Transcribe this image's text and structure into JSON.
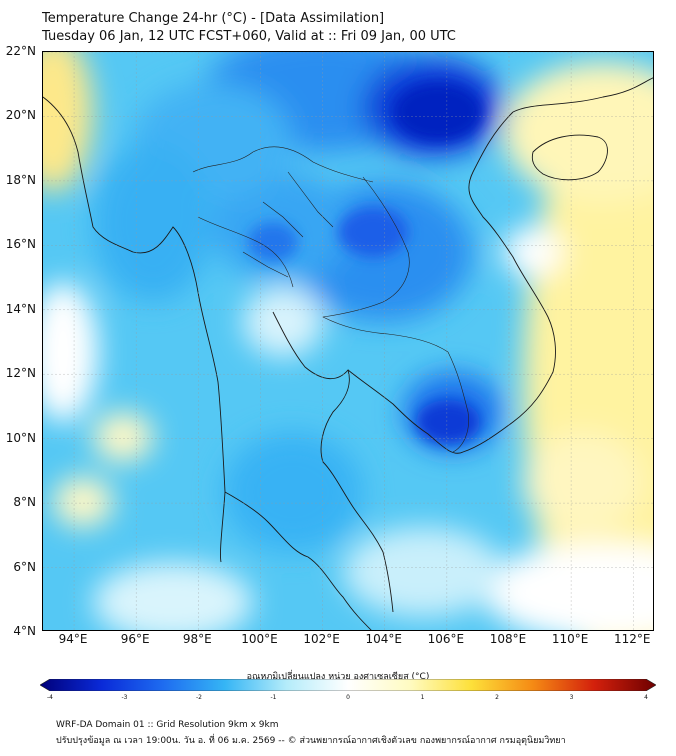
{
  "header": {
    "title": "Temperature Change 24-hr (°C) - [Data Assimilation]",
    "subtitle": "Tuesday 06 Jan, 12 UTC FCST+060, Valid at :: Fri 09 Jan, 00 UTC"
  },
  "map": {
    "lat_range": [
      4,
      22
    ],
    "lon_range": [
      93,
      112.7
    ],
    "lat_ticks": [
      "22°N",
      "20°N",
      "18°N",
      "16°N",
      "14°N",
      "12°N",
      "10°N",
      "8°N",
      "6°N",
      "4°N"
    ],
    "lat_values": [
      22,
      20,
      18,
      16,
      14,
      12,
      10,
      8,
      6,
      4
    ],
    "lon_ticks": [
      "94°E",
      "96°E",
      "98°E",
      "100°E",
      "102°E",
      "104°E",
      "106°E",
      "108°E",
      "110°E",
      "112°E"
    ],
    "lon_values": [
      94,
      96,
      98,
      100,
      102,
      104,
      106,
      108,
      110,
      112
    ]
  },
  "colorbar": {
    "label": "อุณหภูมิเปลี่ยนแปลง หน่วย องศาเซลเซียส (°C)",
    "ticks": [
      "-4",
      "-3",
      "-2",
      "-1",
      "0",
      "1",
      "2",
      "3",
      "4"
    ],
    "tick_values": [
      -4,
      -3,
      -2,
      -1,
      0,
      1,
      2,
      3,
      4
    ],
    "range": [
      -4,
      4
    ],
    "colors": [
      "#00007a",
      "#0a2ad8",
      "#1e6cf0",
      "#35b5f5",
      "#b4ecfa",
      "#ffffff",
      "#fffbc2",
      "#fde03a",
      "#f58a14",
      "#d3200c",
      "#6e0000"
    ]
  },
  "footer": {
    "line1": "WRF-DA Domain 01 :: Grid Resolution 9km x 9km",
    "line2": "ปรับปรุงข้อมูล ณ เวลา 19:00น. วัน อ. ที่ 06 ม.ค. 2569 -- © ส่วนพยากรณ์อากาศเชิงตัวเลข กองพยากรณ์อากาศ กรมอุตุนิยมวิทยา"
  }
}
